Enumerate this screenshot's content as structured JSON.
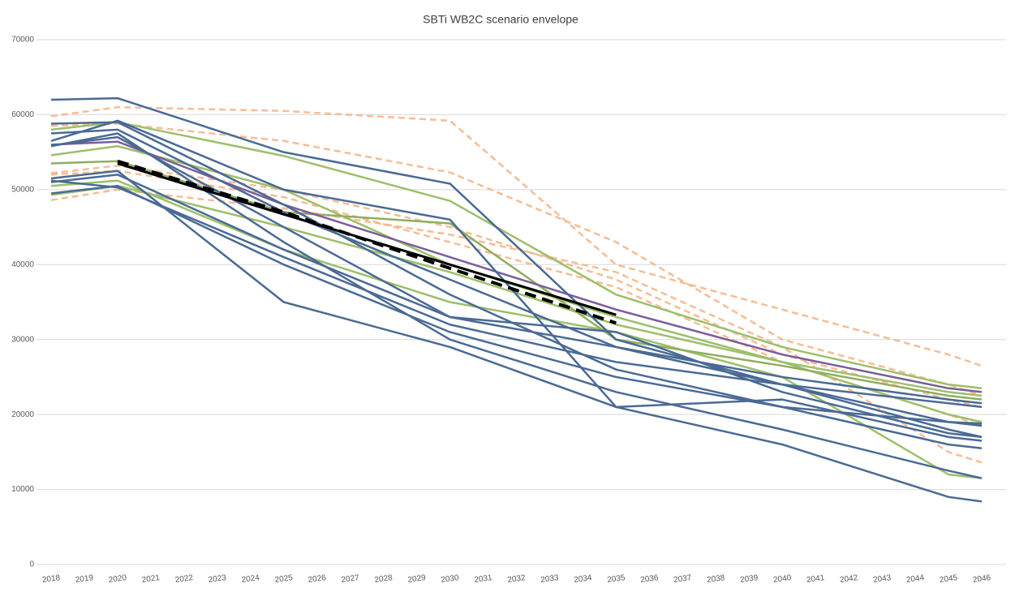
{
  "chart_data": {
    "type": "line",
    "title": "SBTi WB2C scenario envelope",
    "x": [
      2018,
      2020,
      2025,
      2030,
      2035,
      2040,
      2045,
      2046
    ],
    "xlim": [
      2018,
      2046
    ],
    "xticks": [
      2018,
      2019,
      2020,
      2021,
      2022,
      2023,
      2024,
      2025,
      2026,
      2027,
      2028,
      2029,
      2030,
      2031,
      2032,
      2033,
      2034,
      2035,
      2036,
      2037,
      2038,
      2039,
      2040,
      2041,
      2042,
      2043,
      2044,
      2045,
      2046
    ],
    "ylim": [
      0,
      70000
    ],
    "yticks": [
      0,
      10000,
      20000,
      30000,
      40000,
      50000,
      60000,
      70000
    ],
    "grid": true,
    "series": [
      {
        "color": "#f4b183",
        "dashed": true,
        "values": [
          59800,
          61000,
          60500,
          59200,
          40000,
          34000,
          28000,
          26500
        ]
      },
      {
        "color": "#f4b183",
        "dashed": true,
        "values": [
          58500,
          58800,
          56500,
          52300,
          43000,
          30000,
          24000,
          22500
        ]
      },
      {
        "color": "#f4b183",
        "dashed": true,
        "values": [
          52200,
          53200,
          50000,
          45000,
          38000,
          28000,
          22000,
          21000
        ]
      },
      {
        "color": "#f4b183",
        "dashed": true,
        "values": [
          48600,
          50000,
          47500,
          44000,
          39000,
          29000,
          15000,
          13600
        ]
      },
      {
        "color": "#f4b183",
        "dashed": true,
        "values": [
          52000,
          52500,
          49000,
          43000,
          37000,
          27000,
          20000,
          18500
        ]
      },
      {
        "color": "#9dbf6a",
        "values": [
          58000,
          59000,
          54500,
          48500,
          36000,
          29000,
          24000,
          23500
        ]
      },
      {
        "color": "#9dbf6a",
        "values": [
          54600,
          55800,
          50000,
          40000,
          33000,
          27000,
          23000,
          22500
        ]
      },
      {
        "color": "#9dbf6a",
        "values": [
          50500,
          51200,
          42000,
          35000,
          31000,
          25000,
          12000,
          11500
        ]
      },
      {
        "color": "#9dbf6a",
        "values": [
          49300,
          50500,
          45000,
          39000,
          32000,
          27000,
          20000,
          19000
        ]
      },
      {
        "color": "#8fae5e",
        "values": [
          53500,
          53800,
          47000,
          45500,
          30000,
          26500,
          22500,
          22000
        ]
      },
      {
        "color": "#7b5e9a",
        "values": [
          56000,
          56400,
          48000,
          41000,
          34000,
          28000,
          23500,
          23000
        ]
      },
      {
        "color": "#4a6a94",
        "values": [
          62000,
          62200,
          55000,
          50800,
          30000,
          24000,
          19000,
          18500
        ]
      },
      {
        "color": "#4a6a94",
        "values": [
          56500,
          59200,
          50000,
          46000,
          21000,
          22000,
          17000,
          16500
        ]
      },
      {
        "color": "#4a6a94",
        "values": [
          51500,
          52500,
          35000,
          29000,
          21000,
          16000,
          9000,
          8400
        ]
      },
      {
        "color": "#4a6a94",
        "values": [
          55800,
          57500,
          43000,
          30000,
          23000,
          18000,
          12500,
          11500
        ]
      },
      {
        "color": "#4a6a94",
        "values": [
          51000,
          52000,
          42000,
          33000,
          29000,
          25000,
          22000,
          21500
        ]
      },
      {
        "color": "#4a6a94",
        "values": [
          49500,
          50500,
          40000,
          31000,
          25000,
          21000,
          16000,
          15500
        ]
      },
      {
        "color": "#4a6a94",
        "values": [
          57500,
          58000,
          47000,
          38000,
          29000,
          24000,
          18000,
          17000
        ]
      },
      {
        "color": "#4a6a94",
        "values": [
          58800,
          59000,
          48000,
          36000,
          26000,
          21000,
          19000,
          18800
        ]
      },
      {
        "color": "#4a6a94",
        "values": [
          51200,
          50300,
          41000,
          32000,
          27000,
          24000,
          21500,
          21000
        ]
      },
      {
        "color": "#4a6a94",
        "values": [
          55900,
          57000,
          45000,
          33000,
          31000,
          23000,
          17500,
          17000
        ]
      },
      {
        "color": "#000000",
        "width": 3,
        "values": [
          null,
          53500,
          46700,
          40000,
          33300,
          null,
          null,
          null
        ]
      },
      {
        "color": "#000000",
        "width": 4,
        "dashed": true,
        "values": [
          null,
          53800,
          47000,
          39500,
          32200,
          null,
          null,
          null
        ]
      }
    ]
  }
}
